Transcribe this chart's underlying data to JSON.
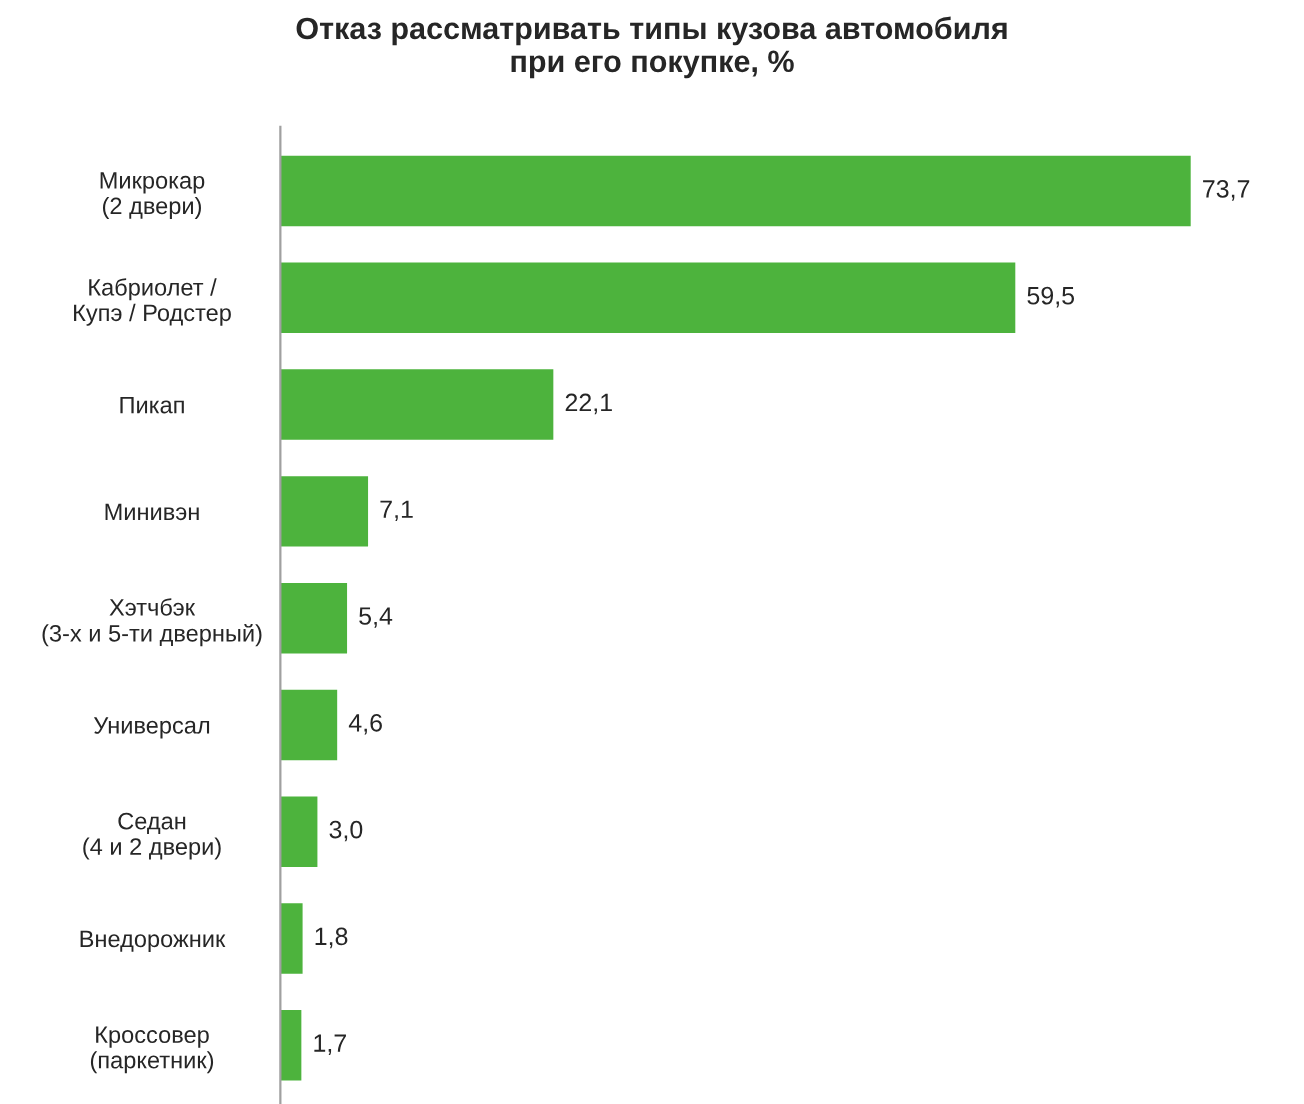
{
  "chart_data": {
    "type": "bar",
    "orientation": "horizontal",
    "title": "Отказ рассматривать типы кузова автомобиля\nпри его покупке, %",
    "categories": [
      "Микрокар\n(2 двери)",
      "Кабриолет /\nКупэ / Родстер",
      "Пикап",
      "Минивэн",
      "Хэтчбэк\n(3-х и 5-ти дверный)",
      "Универсал",
      "Седан\n(4 и 2 двери)",
      "Внедорожник",
      "Кроссовер\n(паркетник)"
    ],
    "values": [
      73.7,
      59.5,
      22.1,
      7.1,
      5.4,
      4.6,
      3.0,
      1.8,
      1.7
    ],
    "value_labels": [
      "73,7",
      "59,5",
      "22,1",
      "7,1",
      "5,4",
      "4,6",
      "3,0",
      "1,8",
      "1,7"
    ],
    "color": "#4db33d",
    "grid": false,
    "legend": false
  }
}
